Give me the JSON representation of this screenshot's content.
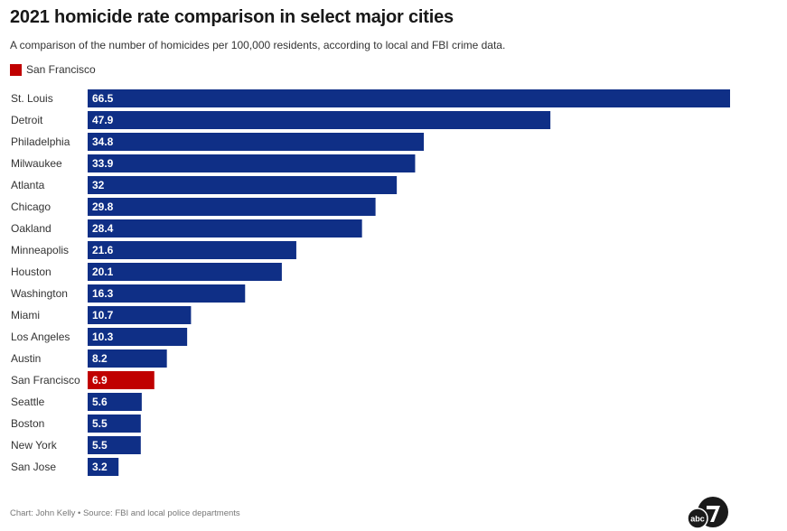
{
  "header": {
    "title": "2021 homicide rate comparison in select major cities",
    "subtitle": "A comparison of the number of homicides per 100,000 residents, according to local and FBI crime data."
  },
  "legend": {
    "label": "San Francisco",
    "color": "#c00000"
  },
  "colors": {
    "default_bar": "#0f2f86",
    "highlight_bar": "#c00000"
  },
  "footer": {
    "credit": "Chart: John Kelly • Source: FBI and local police departments"
  },
  "logo": {
    "text": "abc",
    "number": "7"
  },
  "chart_data": {
    "type": "bar",
    "orientation": "horizontal",
    "categories": [
      "St. Louis",
      "Detroit",
      "Philadelphia",
      "Milwaukee",
      "Atlanta",
      "Chicago",
      "Oakland",
      "Minneapolis",
      "Houston",
      "Washington",
      "Miami",
      "Los Angeles",
      "Austin",
      "San Francisco",
      "Seattle",
      "Boston",
      "New York",
      "San Jose"
    ],
    "values": [
      66.5,
      47.9,
      34.8,
      33.9,
      32,
      29.8,
      28.4,
      21.6,
      20.1,
      16.3,
      10.7,
      10.3,
      8.2,
      6.9,
      5.6,
      5.5,
      5.5,
      3.2
    ],
    "highlight": "San Francisco",
    "data_labels": [
      "66.5",
      "47.9",
      "34.8",
      "33.9",
      "32",
      "29.8",
      "28.4",
      "21.6",
      "20.1",
      "16.3",
      "10.7",
      "10.3",
      "8.2",
      "6.9",
      "5.6",
      "5.5",
      "5.5",
      "3.2"
    ],
    "title": "2021 homicide rate comparison in select major cities",
    "xlabel": "",
    "ylabel": "",
    "xlim": [
      0,
      66.5
    ],
    "grid": false
  }
}
